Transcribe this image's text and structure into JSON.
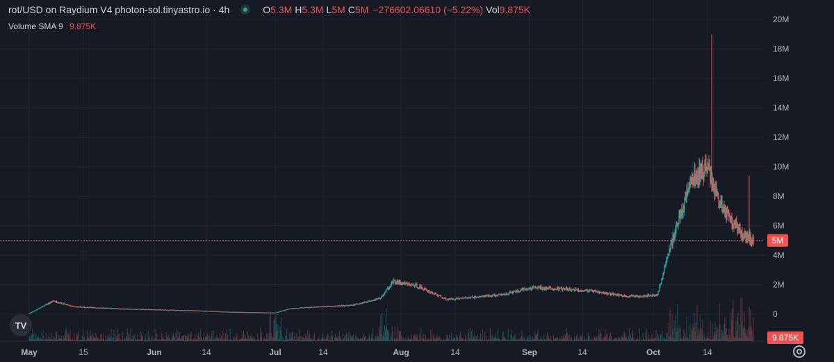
{
  "header": {
    "title": "rot/USD on Raydium V4 photon-sol.tinyastro.io · 4h",
    "ohlc": [
      {
        "k": "O",
        "v": "5.3M"
      },
      {
        "k": "H",
        "v": "5.3M"
      },
      {
        "k": "L",
        "v": "5M"
      },
      {
        "k": "C",
        "v": "5M"
      }
    ],
    "change": "−276602.06610 (−5.22%)",
    "vol_label": "Vol",
    "vol_value": "9.875K"
  },
  "volume_legend": {
    "label": "Volume",
    "sma": "SMA 9",
    "value": "9.875K"
  },
  "logo_text": "TV",
  "colors": {
    "background": "#161a25",
    "grid": "#232632",
    "up": "#26a69a",
    "down": "#ef5350",
    "text": "#d1d4dc",
    "price_line": "#ef5350"
  },
  "chart_data": {
    "type": "candlestick",
    "timeframe": "4h",
    "x_labels": [
      "May",
      "15",
      "Jun",
      "14",
      "Jul",
      "14",
      "Aug",
      "14",
      "Sep",
      "14",
      "Oct",
      "14"
    ],
    "y_ticks": [
      "0",
      "2M",
      "4M",
      "6M",
      "8M",
      "10M",
      "12M",
      "14M",
      "16M",
      "18M",
      "20M"
    ],
    "ylim": [
      0,
      20000000
    ],
    "last_price_label": "5M",
    "last_price": 5000000,
    "volume_label": "9.875K",
    "grid": true,
    "approx_close_path": [
      {
        "date": "2024-05-01",
        "close": 0.05
      },
      {
        "date": "2024-05-07",
        "close": 0.9
      },
      {
        "date": "2024-05-12",
        "close": 0.5
      },
      {
        "date": "2024-05-25",
        "close": 0.35
      },
      {
        "date": "2024-06-10",
        "close": 0.25
      },
      {
        "date": "2024-06-20",
        "close": 0.15
      },
      {
        "date": "2024-07-01",
        "close": 0.1
      },
      {
        "date": "2024-07-05",
        "close": 0.4
      },
      {
        "date": "2024-07-20",
        "close": 0.6
      },
      {
        "date": "2024-07-27",
        "close": 1.1
      },
      {
        "date": "2024-07-30",
        "close": 2.2
      },
      {
        "date": "2024-08-05",
        "close": 1.9
      },
      {
        "date": "2024-08-12",
        "close": 1.0
      },
      {
        "date": "2024-08-25",
        "close": 1.3
      },
      {
        "date": "2024-09-02",
        "close": 1.8
      },
      {
        "date": "2024-09-15",
        "close": 1.6
      },
      {
        "date": "2024-09-25",
        "close": 1.2
      },
      {
        "date": "2024-10-02",
        "close": 1.3
      },
      {
        "date": "2024-10-05",
        "close": 4.5
      },
      {
        "date": "2024-10-10",
        "close": 9.0
      },
      {
        "date": "2024-10-14",
        "close": 10.0
      },
      {
        "date": "2024-10-17",
        "close": 7.5
      },
      {
        "date": "2024-10-22",
        "close": 5.5
      },
      {
        "date": "2024-10-25",
        "close": 5.0
      }
    ],
    "approx_close_path_unit": "M USD",
    "max_high": 19000000
  }
}
